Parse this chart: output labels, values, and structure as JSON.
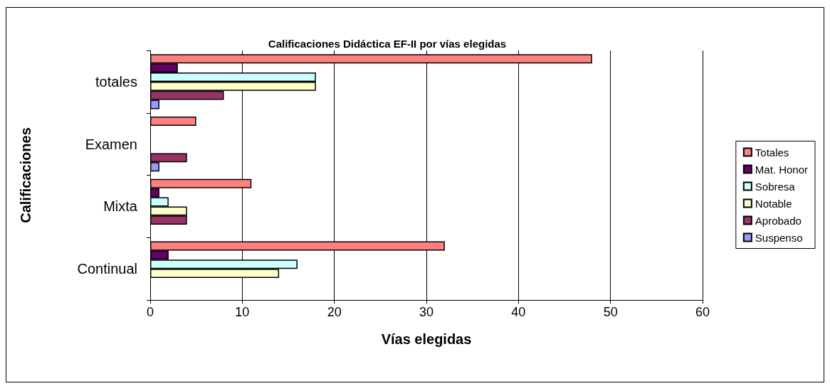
{
  "chart_data": {
    "type": "bar",
    "orientation": "horizontal",
    "title": "Calificaciones Didáctica EF-II por vías elegidas",
    "xlabel": "Vías elegidas",
    "ylabel": "Calificaciones",
    "categories": [
      "totales",
      "Examen",
      "Mixta",
      "Continual"
    ],
    "series": [
      {
        "name": "Totales",
        "color": "#ff8080",
        "values": [
          48,
          5,
          11,
          32
        ]
      },
      {
        "name": "Mat. Honor",
        "color": "#660066",
        "values": [
          3,
          0,
          1,
          2
        ]
      },
      {
        "name": "Sobresa",
        "color": "#ccffff",
        "values": [
          18,
          0,
          2,
          16
        ]
      },
      {
        "name": "Notable",
        "color": "#ffffcc",
        "values": [
          18,
          0,
          4,
          14
        ]
      },
      {
        "name": "Aprobado",
        "color": "#993366",
        "values": [
          8,
          4,
          4,
          0
        ]
      },
      {
        "name": "Suspenso",
        "color": "#9999ff",
        "values": [
          1,
          1,
          0,
          0
        ]
      }
    ],
    "xlim": [
      0,
      60
    ],
    "xticks": [
      0,
      10,
      20,
      30,
      40,
      50,
      60
    ],
    "grid": "x",
    "legend": "right"
  }
}
